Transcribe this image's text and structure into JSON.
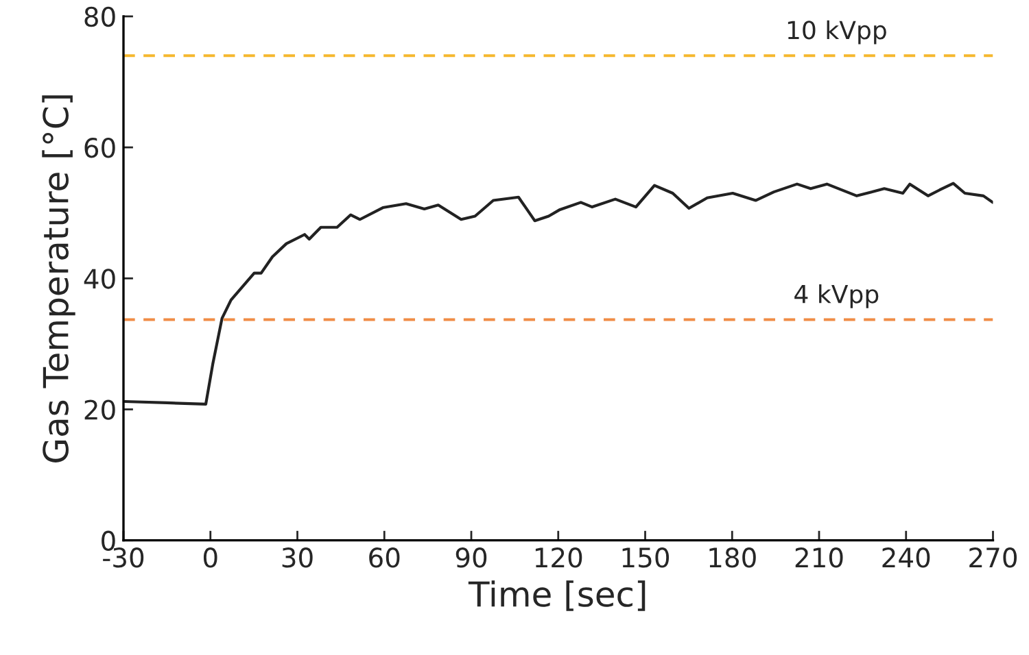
{
  "chart_data": {
    "type": "line",
    "xlabel": "Time [sec]",
    "ylabel": "Gas Temperature [°C]",
    "xlim": [
      -30,
      270
    ],
    "xticks": [
      -30,
      0,
      30,
      60,
      90,
      120,
      150,
      180,
      210,
      240,
      270
    ],
    "ylim": [
      0,
      80
    ],
    "yticks": [
      0,
      20,
      40,
      60,
      80
    ],
    "grid": false,
    "legend": false,
    "series": [
      {
        "color": "#222222",
        "x": [
          -29.5,
          -15,
          -1.6,
          0.8,
          4,
          7.1,
          15.1,
          17.5,
          21.4,
          26.2,
          32.5,
          34.1,
          38.1,
          43.7,
          48.4,
          51.6,
          59.5,
          67.5,
          73.8,
          78.6,
          86.5,
          91.3,
          97.6,
          106.3,
          111.9,
          116.7,
          120.6,
          127.8,
          131.7,
          139.7,
          146.8,
          153.2,
          159.5,
          165.1,
          171.4,
          180.2,
          188.1,
          194.4,
          202.4,
          207.1,
          212.7,
          223,
          232.5,
          238.9,
          241.3,
          247.6,
          251.6,
          256.3,
          260.3,
          266.7,
          269.9
        ],
        "values": [
          21.2,
          21.0,
          20.8,
          26.9,
          33.9,
          36.7,
          40.8,
          40.8,
          43.3,
          45.3,
          46.7,
          46.0,
          47.8,
          47.8,
          49.7,
          49.0,
          50.8,
          51.4,
          50.6,
          51.2,
          49.0,
          49.5,
          51.9,
          52.4,
          48.8,
          49.5,
          50.5,
          51.6,
          50.9,
          52.1,
          50.9,
          54.2,
          53.0,
          50.7,
          52.3,
          53.0,
          51.9,
          53.2,
          54.4,
          53.7,
          54.4,
          52.6,
          53.7,
          53.0,
          54.4,
          52.6,
          53.5,
          54.5,
          53.0,
          52.6,
          51.6
        ]
      }
    ],
    "ref_lines": [
      {
        "axis": "y",
        "value": 74,
        "label": "10 kVpp",
        "color": "#f5b82e",
        "line_style": "dashed"
      },
      {
        "axis": "y",
        "value": 33.7,
        "label": "4 kVpp",
        "color": "#f08c46",
        "line_style": "dashed"
      }
    ]
  }
}
